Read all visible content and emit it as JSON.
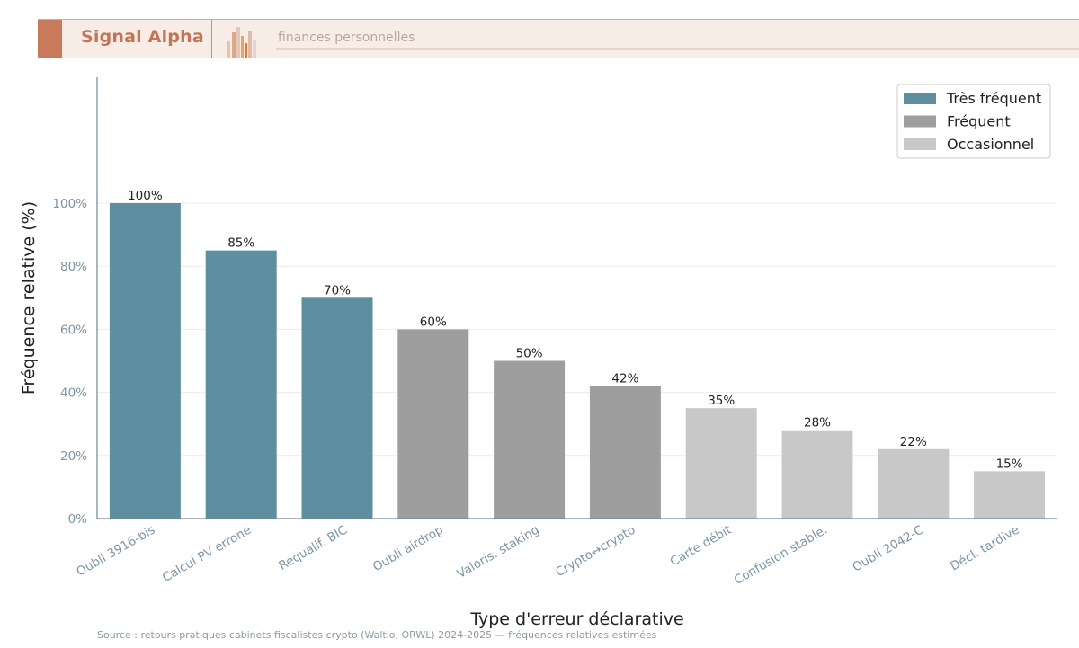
{
  "header": {
    "brand": "Signal Alpha",
    "tagline": "finances personnelles"
  },
  "colors": {
    "tres_frequent": "#5e8fa0",
    "frequent": "#9e9e9e",
    "occasionnel": "#c8c8c8",
    "axis": "#6f8796",
    "tick_text": "#7a95a5"
  },
  "chart_data": {
    "type": "bar",
    "title": "",
    "xlabel": "Type d'erreur déclarative",
    "ylabel": "Fréquence relative (%)",
    "ylim": [
      0,
      100
    ],
    "y_ticks": [
      "0%",
      "20%",
      "40%",
      "60%",
      "80%",
      "100%"
    ],
    "y_tick_values": [
      0,
      20,
      40,
      60,
      80,
      100
    ],
    "grid": true,
    "legend_position": "top-right",
    "categories": [
      "Oubli 3916-bis",
      "Calcul PV erroné",
      "Requalif. BIC",
      "Oubli airdrop",
      "Valoris. staking",
      "Crypto↔crypto",
      "Carte débit",
      "Confusion stable.",
      "Oubli 2042-C",
      "Décl. tardive"
    ],
    "values": [
      100,
      85,
      70,
      60,
      50,
      42,
      35,
      28,
      22,
      15
    ],
    "value_labels": [
      "100%",
      "85%",
      "70%",
      "60%",
      "50%",
      "42%",
      "35%",
      "28%",
      "22%",
      "15%"
    ],
    "groups": [
      "tres_frequent",
      "tres_frequent",
      "tres_frequent",
      "frequent",
      "frequent",
      "frequent",
      "occasionnel",
      "occasionnel",
      "occasionnel",
      "occasionnel"
    ],
    "legend": [
      {
        "key": "tres_frequent",
        "label": "Très fréquent"
      },
      {
        "key": "frequent",
        "label": "Fréquent"
      },
      {
        "key": "occasionnel",
        "label": "Occasionnel"
      }
    ]
  },
  "source": "Source : retours pratiques cabinets fiscalistes crypto (Waltio, ORWL) 2024-2025 — fréquences relatives estimées"
}
